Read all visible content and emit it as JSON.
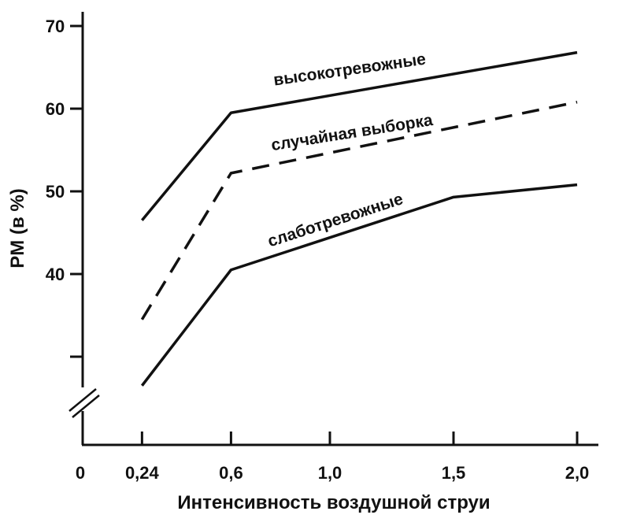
{
  "chart_data": {
    "type": "line",
    "title": "",
    "xlabel": "Интенсивность воздушной струи",
    "ylabel": "PM (в %)",
    "x": [
      0.24,
      0.6,
      1.5,
      2.0
    ],
    "x_tick_values": [
      0,
      0.24,
      0.6,
      1.0,
      1.5,
      2.0
    ],
    "x_tick_labels": [
      "0",
      "0,24",
      "0,6",
      "1,0",
      "1,5",
      "2,0"
    ],
    "y_tick_values": [
      30,
      40,
      50,
      60,
      70
    ],
    "y_tick_labels": [
      "",
      "40",
      "50",
      "60",
      "70"
    ],
    "y_axis_break": true,
    "grid": false,
    "legend": "none",
    "series": [
      {
        "name": "высокотревожные",
        "style": "solid",
        "color": "#111111",
        "x": [
          0.24,
          0.6,
          2.0
        ],
        "values": [
          46.5,
          59.5,
          66.8
        ]
      },
      {
        "name": "случайная выборка",
        "style": "dashed",
        "color": "#111111",
        "x": [
          0.24,
          0.6,
          2.0
        ],
        "values": [
          34.5,
          52.2,
          60.8
        ]
      },
      {
        "name": "слаботревожные",
        "style": "solid",
        "color": "#111111",
        "x": [
          0.24,
          0.6,
          1.5,
          2.0
        ],
        "values": [
          26.5,
          40.5,
          49.3,
          50.8
        ]
      }
    ]
  }
}
